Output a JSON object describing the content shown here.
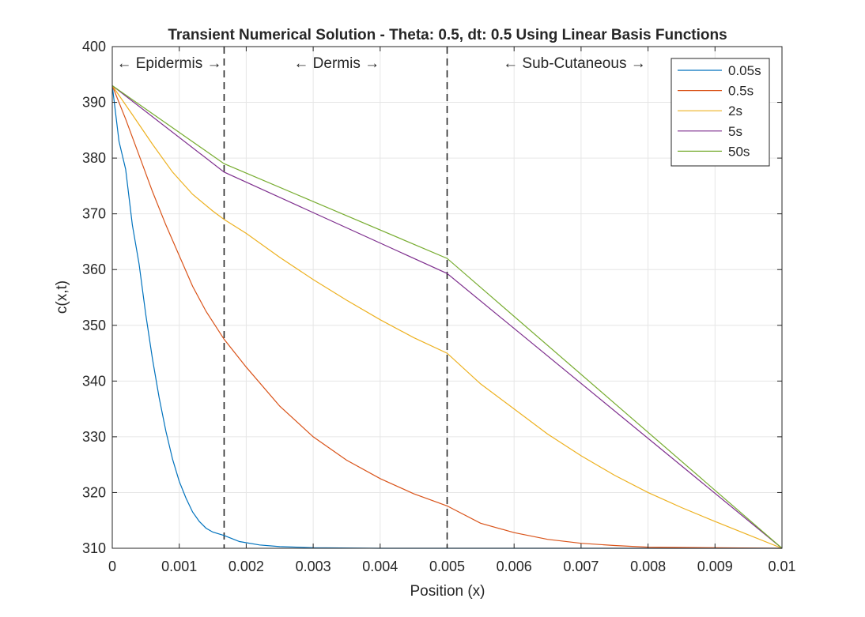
{
  "chart_data": {
    "type": "line",
    "title": "Transient Numerical Solution - Theta: 0.5, dt: 0.5 Using Linear Basis Functions",
    "xlabel": "Position (x)",
    "ylabel": "c(x,t)",
    "xlim": [
      0,
      0.01
    ],
    "ylim": [
      310,
      400
    ],
    "xticks": [
      0,
      0.001,
      0.002,
      0.003,
      0.004,
      0.005,
      0.006,
      0.007,
      0.008,
      0.009,
      0.01
    ],
    "xtick_labels": [
      "0",
      "0.001",
      "0.002",
      "0.003",
      "0.004",
      "0.005",
      "0.006",
      "0.007",
      "0.008",
      "0.009",
      "0.01"
    ],
    "yticks": [
      310,
      320,
      330,
      340,
      350,
      360,
      370,
      380,
      390,
      400
    ],
    "ytick_labels": [
      "310",
      "320",
      "330",
      "340",
      "350",
      "360",
      "370",
      "380",
      "390",
      "400"
    ],
    "grid": true,
    "legend_position": "top-right",
    "boundaries": [
      0.00167,
      0.005
    ],
    "annotations": [
      {
        "text": "← Epidermis →",
        "x": 0.00085,
        "y": 396.2
      },
      {
        "text": "← Dermis →",
        "x": 0.00335,
        "y": 396.2
      },
      {
        "text": "← Sub-Cutaneous →",
        "x": 0.0069,
        "y": 396.2
      }
    ],
    "series": [
      {
        "name": "0.05s",
        "color": "#0072BD",
        "x": [
          0,
          0.0001,
          0.0002,
          0.0003,
          0.0004,
          0.0005,
          0.0006,
          0.0007,
          0.0008,
          0.0009,
          0.001,
          0.0011,
          0.0012,
          0.0013,
          0.0014,
          0.0015,
          0.00167,
          0.0019,
          0.0022,
          0.0025,
          0.003,
          0.004,
          0.005,
          0.006,
          0.007,
          0.008,
          0.009,
          0.01
        ],
        "y": [
          393,
          383,
          378,
          368,
          361,
          352,
          344,
          337,
          331,
          326,
          322,
          319,
          316.5,
          314.8,
          313.6,
          312.9,
          312.3,
          311.2,
          310.6,
          310.3,
          310.1,
          310,
          310,
          310,
          310,
          310,
          310,
          310
        ]
      },
      {
        "name": "0.5s",
        "color": "#D95319",
        "x": [
          0,
          0.0002,
          0.0004,
          0.0006,
          0.0008,
          0.001,
          0.0012,
          0.0014,
          0.00167,
          0.002,
          0.0025,
          0.003,
          0.0035,
          0.004,
          0.0045,
          0.005,
          0.0055,
          0.006,
          0.0065,
          0.007,
          0.0075,
          0.008,
          0.009,
          0.01
        ],
        "y": [
          393,
          387,
          380.5,
          374,
          368,
          362.5,
          357,
          352.5,
          347.5,
          342.5,
          335.5,
          330,
          325.8,
          322.5,
          319.8,
          317.6,
          314.5,
          312.8,
          311.6,
          310.9,
          310.5,
          310.2,
          310.1,
          310
        ]
      },
      {
        "name": "2s",
        "color": "#EDB120",
        "x": [
          0,
          0.0003,
          0.0006,
          0.0009,
          0.0012,
          0.0015,
          0.00167,
          0.002,
          0.0025,
          0.003,
          0.0035,
          0.004,
          0.0045,
          0.005,
          0.0055,
          0.006,
          0.0065,
          0.007,
          0.0075,
          0.008,
          0.0085,
          0.009,
          0.0095,
          0.01
        ],
        "y": [
          393,
          387.8,
          382.5,
          377.5,
          373.5,
          370.5,
          369,
          366.5,
          362.2,
          358.2,
          354.5,
          351,
          347.8,
          345,
          339.5,
          335,
          330.5,
          326.6,
          323.1,
          320,
          317.3,
          314.8,
          312.4,
          310
        ]
      },
      {
        "name": "5s",
        "color": "#7E2F8E",
        "x": [
          0,
          0.00167,
          0.005,
          0.01
        ],
        "y": [
          393,
          377.5,
          359.3,
          310
        ]
      },
      {
        "name": "50s",
        "color": "#77AC30",
        "x": [
          0,
          0.00167,
          0.005,
          0.01
        ],
        "y": [
          393,
          379,
          362,
          310
        ]
      }
    ]
  }
}
